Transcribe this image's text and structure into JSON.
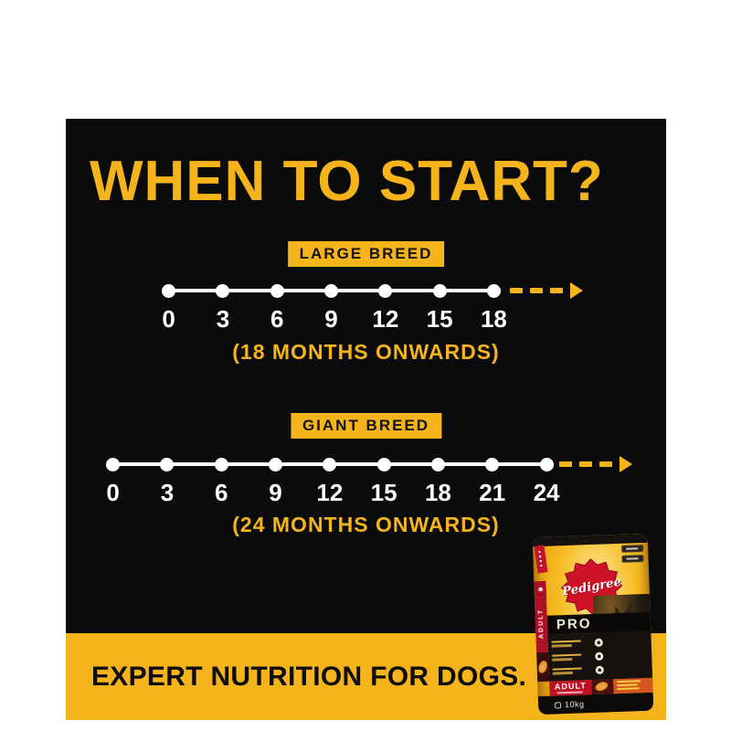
{
  "colors": {
    "yellow": "#F6B41C",
    "panel": "#0B0B0B",
    "white": "#FFFFFF",
    "red": "#C8102E"
  },
  "header": {
    "title": "WHEN TO START?"
  },
  "timelines": [
    {
      "label": "LARGE BREED",
      "ticks": [
        "0",
        "3",
        "6",
        "9",
        "12",
        "15",
        "18"
      ],
      "caption": "(18 MONTHS ONWARDS)",
      "unit": "months"
    },
    {
      "label": "GIANT BREED",
      "ticks": [
        "0",
        "3",
        "6",
        "9",
        "12",
        "15",
        "18",
        "21",
        "24"
      ],
      "caption": "(24 MONTHS ONWARDS)",
      "unit": "months"
    }
  ],
  "footer": {
    "text": "EXPERT NUTRITION FOR DOGS."
  },
  "pack": {
    "brand": "Pedigree",
    "range": "PRO",
    "side_label": "ADULT",
    "banner_label": "ADULT",
    "weight": "10kg"
  }
}
